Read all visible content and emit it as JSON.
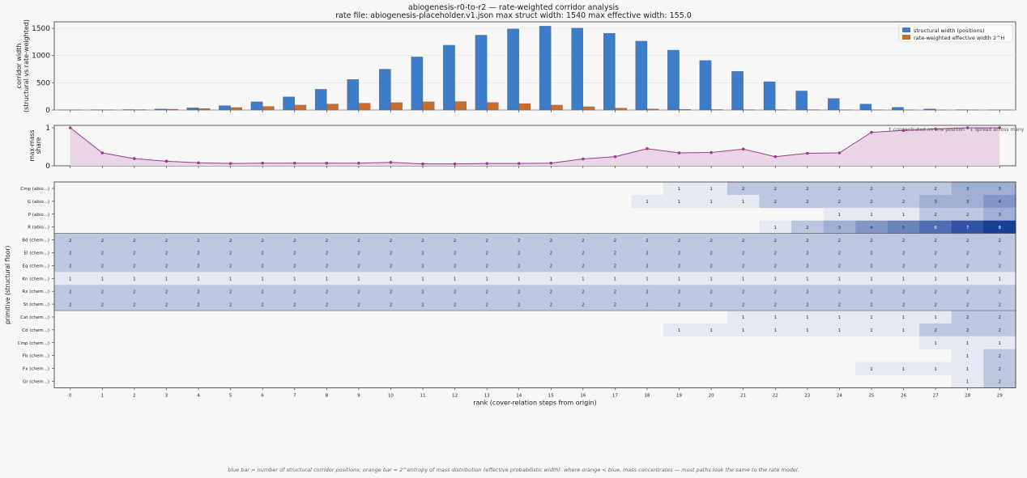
{
  "title": "abiogenesis-r0-to-r2  —  rate-weighted corridor analysis",
  "subtitle": "rate file: abiogenesis-placeholder.v1.json  max struct width: 1540  max effective width: 155.0",
  "caption": "blue bar = number of structural corridor positions; orange bar = 2^entropy of mass distribution (effective probabilistic width). where orange < blue, mass concentrates — most paths look the same to the rate model.",
  "colors": {
    "structural": "#3d7cc9",
    "effective": "#c96d2e",
    "share_line": "#9c3c8a",
    "share_fill": "#e8d5e6",
    "heat_max": "#173f94"
  },
  "chart_data": [
    {
      "type": "bar",
      "ylabel": "corridor width\n(structural vs rate-weighted)",
      "ylim": [
        0,
        1620
      ],
      "yticks": [
        0,
        500,
        1000,
        1500
      ],
      "x": [
        0,
        1,
        2,
        3,
        4,
        5,
        6,
        7,
        8,
        9,
        10,
        11,
        12,
        13,
        14,
        15,
        16,
        17,
        18,
        19,
        20,
        21,
        22,
        23,
        24,
        25,
        26,
        27,
        28,
        29
      ],
      "legend_position": "top-right",
      "series": [
        {
          "name": "structural width (positions)",
          "color": "#3d7cc9",
          "values": [
            1,
            3,
            8,
            20,
            40,
            80,
            150,
            240,
            380,
            560,
            750,
            975,
            1190,
            1375,
            1490,
            1540,
            1505,
            1410,
            1265,
            1100,
            910,
            710,
            520,
            350,
            210,
            110,
            50,
            20,
            5,
            1
          ]
        },
        {
          "name": "rate-weighted effective width 2^H",
          "color": "#c96d2e",
          "values": [
            1,
            2,
            6,
            15,
            28,
            45,
            65,
            90,
            110,
            125,
            135,
            150,
            155,
            138,
            118,
            90,
            60,
            35,
            20,
            12,
            8,
            5,
            4,
            3,
            2,
            2,
            1,
            1,
            1,
            1
          ]
        }
      ]
    },
    {
      "type": "area",
      "ylabel": "max-mass\nshare",
      "ylim": [
        0,
        1
      ],
      "yticks": [
        0,
        1
      ],
      "x": [
        0,
        1,
        2,
        3,
        4,
        5,
        6,
        7,
        8,
        9,
        10,
        11,
        12,
        13,
        14,
        15,
        16,
        17,
        18,
        19,
        20,
        21,
        22,
        23,
        24,
        25,
        26,
        27,
        28,
        29
      ],
      "values": [
        1.0,
        0.34,
        0.19,
        0.12,
        0.08,
        0.06,
        0.07,
        0.07,
        0.07,
        0.07,
        0.09,
        0.05,
        0.05,
        0.06,
        0.06,
        0.07,
        0.18,
        0.24,
        0.45,
        0.34,
        0.35,
        0.44,
        0.24,
        0.33,
        0.34,
        0.88,
        0.93,
        0.97,
        1.0,
        1.0
      ],
      "annotations": [
        "↑ concentrated on one position",
        "↓ spread across many"
      ]
    },
    {
      "type": "heatmap",
      "ylabel": "primitive (structural floor)",
      "xlabel": "rank (cover-relation steps from origin)",
      "x": [
        0,
        1,
        2,
        3,
        4,
        5,
        6,
        7,
        8,
        9,
        10,
        11,
        12,
        13,
        14,
        15,
        16,
        17,
        18,
        19,
        20,
        21,
        22,
        23,
        24,
        25,
        26,
        27,
        28,
        29
      ],
      "rows": [
        {
          "label": "Cmp  (abio...)",
          "values": [
            0,
            0,
            0,
            0,
            0,
            0,
            0,
            0,
            0,
            0,
            0,
            0,
            0,
            0,
            0,
            0,
            0,
            0,
            0,
            1,
            1,
            2,
            2,
            2,
            2,
            2,
            2,
            2,
            3,
            3
          ]
        },
        {
          "label": "G  (abio...)",
          "values": [
            0,
            0,
            0,
            0,
            0,
            0,
            0,
            0,
            0,
            0,
            0,
            0,
            0,
            0,
            0,
            0,
            0,
            0,
            1,
            1,
            1,
            1,
            2,
            2,
            2,
            2,
            2,
            3,
            3,
            4
          ]
        },
        {
          "label": "P  (abio...)",
          "values": [
            0,
            0,
            0,
            0,
            0,
            0,
            0,
            0,
            0,
            0,
            0,
            0,
            0,
            0,
            0,
            0,
            0,
            0,
            0,
            0,
            0,
            0,
            0,
            0,
            1,
            1,
            1,
            2,
            2,
            3
          ]
        },
        {
          "label": "R  (abio...)",
          "values": [
            0,
            0,
            0,
            0,
            0,
            0,
            0,
            0,
            0,
            0,
            0,
            0,
            0,
            0,
            0,
            0,
            0,
            0,
            0,
            0,
            0,
            0,
            1,
            2,
            3,
            4,
            5,
            6,
            7,
            8
          ]
        },
        {
          "label": "Bd  (chem...)",
          "values": [
            2,
            2,
            2,
            2,
            2,
            2,
            2,
            2,
            2,
            2,
            2,
            2,
            2,
            2,
            2,
            2,
            2,
            2,
            2,
            2,
            2,
            2,
            2,
            2,
            2,
            2,
            2,
            2,
            2,
            2
          ]
        },
        {
          "label": "El  (chem...)",
          "values": [
            2,
            2,
            2,
            2,
            2,
            2,
            2,
            2,
            2,
            2,
            2,
            2,
            2,
            2,
            2,
            2,
            2,
            2,
            2,
            2,
            2,
            2,
            2,
            2,
            2,
            2,
            2,
            2,
            2,
            2
          ]
        },
        {
          "label": "Eq  (chem...)",
          "values": [
            2,
            2,
            2,
            2,
            2,
            2,
            2,
            2,
            2,
            2,
            2,
            2,
            2,
            2,
            2,
            2,
            2,
            2,
            2,
            2,
            2,
            2,
            2,
            2,
            2,
            2,
            2,
            2,
            2,
            2
          ]
        },
        {
          "label": "Kn  (chem...)",
          "values": [
            1,
            1,
            1,
            1,
            1,
            1,
            1,
            1,
            1,
            1,
            1,
            1,
            1,
            1,
            1,
            1,
            1,
            1,
            1,
            1,
            1,
            1,
            1,
            1,
            1,
            1,
            1,
            1,
            1,
            1
          ]
        },
        {
          "label": "Rx  (chem...)",
          "values": [
            2,
            2,
            2,
            2,
            2,
            2,
            2,
            2,
            2,
            2,
            2,
            2,
            2,
            2,
            2,
            2,
            2,
            2,
            2,
            2,
            2,
            2,
            2,
            2,
            2,
            2,
            2,
            2,
            2,
            2
          ]
        },
        {
          "label": "St  (chem...)",
          "values": [
            2,
            2,
            2,
            2,
            2,
            2,
            2,
            2,
            2,
            2,
            2,
            2,
            2,
            2,
            2,
            2,
            2,
            2,
            2,
            2,
            2,
            2,
            2,
            2,
            2,
            2,
            2,
            2,
            2,
            2
          ]
        },
        {
          "label": "Cat  (chem...)",
          "values": [
            0,
            0,
            0,
            0,
            0,
            0,
            0,
            0,
            0,
            0,
            0,
            0,
            0,
            0,
            0,
            0,
            0,
            0,
            0,
            0,
            0,
            1,
            1,
            1,
            1,
            1,
            1,
            1,
            2,
            2
          ]
        },
        {
          "label": "Cd  (chem...)",
          "values": [
            0,
            0,
            0,
            0,
            0,
            0,
            0,
            0,
            0,
            0,
            0,
            0,
            0,
            0,
            0,
            0,
            0,
            0,
            0,
            1,
            1,
            1,
            1,
            1,
            1,
            1,
            1,
            2,
            2,
            2
          ]
        },
        {
          "label": "Cmp  (chem...)",
          "values": [
            0,
            0,
            0,
            0,
            0,
            0,
            0,
            0,
            0,
            0,
            0,
            0,
            0,
            0,
            0,
            0,
            0,
            0,
            0,
            0,
            0,
            0,
            0,
            0,
            0,
            0,
            0,
            1,
            1,
            1
          ]
        },
        {
          "label": "Fb  (chem...)",
          "values": [
            0,
            0,
            0,
            0,
            0,
            0,
            0,
            0,
            0,
            0,
            0,
            0,
            0,
            0,
            0,
            0,
            0,
            0,
            0,
            0,
            0,
            0,
            0,
            0,
            0,
            0,
            0,
            0,
            1,
            2
          ]
        },
        {
          "label": "Fx  (chem...)",
          "values": [
            0,
            0,
            0,
            0,
            0,
            0,
            0,
            0,
            0,
            0,
            0,
            0,
            0,
            0,
            0,
            0,
            0,
            0,
            0,
            0,
            0,
            0,
            0,
            0,
            0,
            1,
            1,
            1,
            1,
            2
          ]
        },
        {
          "label": "Gr  (chem...)",
          "values": [
            0,
            0,
            0,
            0,
            0,
            0,
            0,
            0,
            0,
            0,
            0,
            0,
            0,
            0,
            0,
            0,
            0,
            0,
            0,
            0,
            0,
            0,
            0,
            0,
            0,
            0,
            0,
            0,
            1,
            2
          ]
        }
      ],
      "group_separator_after_row": 3,
      "group_separator_after_row_2": 9
    }
  ]
}
